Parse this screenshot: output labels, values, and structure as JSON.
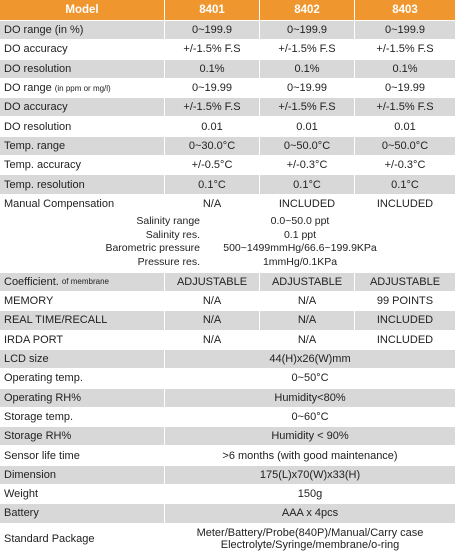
{
  "header": [
    "Model",
    "8401",
    "8402",
    "8403"
  ],
  "rows": [
    {
      "label": "DO range (in %)",
      "cells": [
        "0~199.9",
        "0~199.9",
        "0~199.9"
      ]
    },
    {
      "label": "DO accuracy",
      "cells": [
        "+/-1.5% F.S",
        "+/-1.5% F.S",
        "+/-1.5% F.S"
      ]
    },
    {
      "label": "DO resolution",
      "cells": [
        "0.1%",
        "0.1%",
        "0.1%"
      ]
    },
    {
      "label": "DO range",
      "note": "(in ppm or mg/l)",
      "cells": [
        "0~19.99",
        "0~19.99",
        "0~19.99"
      ]
    },
    {
      "label": "DO accuracy",
      "cells": [
        "+/-1.5% F.S",
        "+/-1.5% F.S",
        "+/-1.5% F.S"
      ]
    },
    {
      "label": "DO resolution",
      "cells": [
        "0.01",
        "0.01",
        "0.01"
      ]
    },
    {
      "label": "Temp. range",
      "cells": [
        "0~30.0°C",
        "0~50.0°C",
        "0~50.0°C"
      ]
    },
    {
      "label": "Temp. accuracy",
      "cells": [
        "+/-0.5°C",
        "+/-0.3°C",
        "+/-0.3°C"
      ]
    },
    {
      "label": "Temp. resolution",
      "cells": [
        "0.1°C",
        "0.1°C",
        "0.1°C"
      ]
    },
    {
      "label": "Manual Compensation",
      "cells": [
        "N/A",
        "INCLUDED",
        "INCLUDED"
      ],
      "details": [
        {
          "name": "Salinity range",
          "value": "0.0~50.0 ppt"
        },
        {
          "name": "Salinity res.",
          "value": "0.1 ppt"
        },
        {
          "name": "Barometric pressure",
          "value": "500~1499mmHg/66.6~199.9KPa"
        },
        {
          "name": "Pressure res.",
          "value": "1mmHg/0.1KPa"
        }
      ]
    },
    {
      "label": "Coefficient.",
      "note": "of membrane",
      "cells": [
        "ADJUSTABLE",
        "ADJUSTABLE",
        "ADJUSTABLE"
      ]
    },
    {
      "label": "MEMORY",
      "cells": [
        "N/A",
        "N/A",
        "99 POINTS"
      ]
    },
    {
      "label": "REAL TIME/RECALL",
      "cells": [
        "N/A",
        "N/A",
        "INCLUDED"
      ]
    },
    {
      "label": "IRDA PORT",
      "cells": [
        "N/A",
        "N/A",
        "INCLUDED"
      ]
    },
    {
      "label": "LCD size",
      "cells": [
        "44(H)x26(W)mm"
      ]
    },
    {
      "label": "Operating temp.",
      "cells": [
        "0~50°C"
      ]
    },
    {
      "label": "Operating RH%",
      "cells": [
        "Humidity<80%"
      ]
    },
    {
      "label": "Storage temp.",
      "cells": [
        "0~60°C"
      ]
    },
    {
      "label": "Storage RH%",
      "cells": [
        "Humidity < 90%"
      ]
    },
    {
      "label": "Sensor life time",
      "cells": [
        ">6 months (with good maintenance)"
      ]
    },
    {
      "label": "Dimension",
      "cells": [
        "175(L)x70(W)x33(H)"
      ]
    },
    {
      "label": "Weight",
      "cells": [
        "150g"
      ]
    },
    {
      "label": "Battery",
      "cells": [
        "AAA x 4pcs"
      ]
    },
    {
      "label": "Standard Package",
      "cells": [
        "Meter/Battery/Probe(840P)/Manual/Carry case",
        "Electrolyte/Syringe/membrane/o-ring"
      ],
      "stacked": true
    }
  ]
}
